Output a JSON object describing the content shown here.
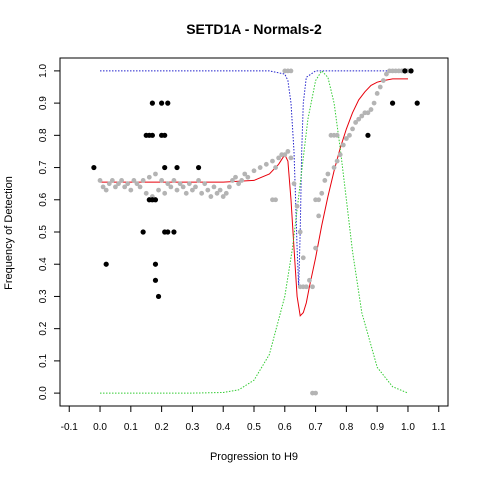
{
  "chart_data": {
    "type": "scatter",
    "title": "SETD1A - Normals-2",
    "xlabel": "Progression to H9",
    "ylabel": "Frequency of Detection",
    "xlim": [
      -0.13,
      1.13
    ],
    "ylim": [
      -0.04,
      1.04
    ],
    "xticks": [
      -0.1,
      0,
      0.1,
      0.2,
      0.3,
      0.4,
      0.5,
      0.6,
      0.7,
      0.8,
      0.9,
      1.0,
      1.1
    ],
    "xtick_labels": [
      "-0.1",
      "0.0",
      "0.1",
      "0.2",
      "0.3",
      "0.4",
      "0.5",
      "0.6",
      "0.7",
      "0.8",
      "0.9",
      "1.0",
      "1.1"
    ],
    "yticks": [
      0,
      0.1,
      0.2,
      0.3,
      0.4,
      0.5,
      0.6,
      0.7,
      0.8,
      0.9,
      1.0
    ],
    "ytick_labels": [
      "0.0",
      "0.1",
      "0.2",
      "0.3",
      "0.4",
      "0.5",
      "0.6",
      "0.7",
      "0.8",
      "0.9",
      "1.0"
    ],
    "grid": false,
    "colors": {
      "black_points": "#000000",
      "grey_points": "#b4b4b4",
      "red_curve": "#e8000b",
      "blue_curve": "#2222cc",
      "green_curve": "#33cc33"
    },
    "series": [
      {
        "kind": "points",
        "color": "black",
        "x": [
          -0.02,
          0.02,
          0.14,
          0.15,
          0.16,
          0.16,
          0.17,
          0.17,
          0.17,
          0.18,
          0.18,
          0.18,
          0.19,
          0.2,
          0.2,
          0.21,
          0.21,
          0.21,
          0.22,
          0.22,
          0.24,
          0.25,
          0.32,
          0.87,
          0.95,
          0.99,
          1.01,
          1.03
        ],
        "y": [
          0.7,
          0.4,
          0.5,
          0.8,
          0.6,
          0.8,
          0.6,
          0.8,
          0.9,
          0.6,
          0.4,
          0.35,
          0.3,
          0.9,
          0.8,
          0.8,
          0.7,
          0.5,
          0.9,
          0.5,
          0.5,
          0.7,
          0.7,
          0.8,
          0.9,
          1.0,
          1.0,
          0.9
        ]
      },
      {
        "kind": "points",
        "color": "grey",
        "x": [
          0.0,
          0.01,
          0.02,
          0.03,
          0.04,
          0.05,
          0.06,
          0.07,
          0.08,
          0.09,
          0.1,
          0.11,
          0.12,
          0.13,
          0.14,
          0.15,
          0.16,
          0.17,
          0.18,
          0.19,
          0.2,
          0.21,
          0.22,
          0.23,
          0.24,
          0.25,
          0.26,
          0.27,
          0.28,
          0.29,
          0.3,
          0.31,
          0.32,
          0.33,
          0.34,
          0.35,
          0.36,
          0.37,
          0.38,
          0.39,
          0.4,
          0.41,
          0.42,
          0.43,
          0.44,
          0.45,
          0.46,
          0.47,
          0.48,
          0.5,
          0.52,
          0.54,
          0.56,
          0.57,
          0.58,
          0.59,
          0.6,
          0.61,
          0.62,
          0.63,
          0.64,
          0.65,
          0.66,
          0.68,
          0.69,
          0.7,
          0.71,
          0.72,
          0.73,
          0.74,
          0.76,
          0.77,
          0.78,
          0.79,
          0.8,
          0.81,
          0.82,
          0.83,
          0.84,
          0.85,
          0.86,
          0.87,
          0.88,
          0.89,
          0.9,
          0.91,
          0.92,
          0.93,
          0.94,
          0.95,
          0.96,
          0.97,
          0.98,
          0.99,
          1.0,
          0.56,
          0.57,
          0.6,
          0.61,
          0.62,
          0.65,
          0.66,
          0.67,
          0.7,
          0.71,
          0.75,
          0.76,
          0.77,
          0.69,
          0.7
        ],
        "y": [
          0.66,
          0.64,
          0.63,
          0.65,
          0.66,
          0.64,
          0.65,
          0.66,
          0.64,
          0.65,
          0.63,
          0.66,
          0.65,
          0.64,
          0.66,
          0.62,
          0.67,
          0.61,
          0.68,
          0.63,
          0.66,
          0.62,
          0.65,
          0.64,
          0.66,
          0.63,
          0.65,
          0.64,
          0.62,
          0.65,
          0.63,
          0.64,
          0.66,
          0.62,
          0.65,
          0.63,
          0.61,
          0.64,
          0.62,
          0.63,
          0.61,
          0.62,
          0.64,
          0.66,
          0.67,
          0.65,
          0.66,
          0.68,
          0.67,
          0.69,
          0.7,
          0.71,
          0.72,
          0.7,
          0.73,
          0.74,
          0.74,
          0.75,
          0.73,
          0.65,
          0.58,
          0.5,
          0.42,
          0.35,
          0.33,
          0.45,
          0.55,
          0.62,
          0.66,
          0.68,
          0.7,
          0.72,
          0.74,
          0.77,
          0.79,
          0.8,
          0.82,
          0.84,
          0.85,
          0.86,
          0.87,
          0.87,
          0.88,
          0.9,
          0.93,
          0.95,
          0.97,
          0.99,
          1.0,
          1.0,
          1.0,
          1.0,
          1.0,
          1.0,
          1.0,
          0.6,
          0.6,
          1.0,
          1.0,
          1.0,
          0.33,
          0.33,
          0.33,
          0.6,
          0.6,
          0.8,
          0.8,
          0.8,
          0.0,
          0.0
        ]
      },
      {
        "kind": "line",
        "color": "red",
        "x": [
          0.0,
          0.1,
          0.2,
          0.3,
          0.4,
          0.5,
          0.55,
          0.58,
          0.6,
          0.61,
          0.62,
          0.63,
          0.64,
          0.65,
          0.66,
          0.67,
          0.68,
          0.7,
          0.72,
          0.74,
          0.76,
          0.78,
          0.8,
          0.82,
          0.84,
          0.86,
          0.88,
          0.9,
          0.92,
          0.95,
          1.0
        ],
        "y": [
          0.655,
          0.655,
          0.655,
          0.655,
          0.655,
          0.66,
          0.68,
          0.71,
          0.74,
          0.72,
          0.6,
          0.45,
          0.3,
          0.24,
          0.25,
          0.28,
          0.33,
          0.42,
          0.52,
          0.61,
          0.69,
          0.76,
          0.82,
          0.87,
          0.91,
          0.935,
          0.955,
          0.965,
          0.97,
          0.975,
          0.975
        ]
      },
      {
        "kind": "line",
        "color": "blue",
        "x": [
          0.0,
          0.3,
          0.55,
          0.6,
          0.61,
          0.62,
          0.63,
          0.635,
          0.64,
          0.645,
          0.65,
          0.655,
          0.66,
          0.67,
          0.7,
          0.8,
          1.0
        ],
        "y": [
          1.0,
          1.0,
          1.0,
          0.99,
          0.97,
          0.9,
          0.75,
          0.6,
          0.45,
          0.33,
          0.5,
          0.75,
          0.9,
          0.98,
          1.0,
          1.0,
          1.0
        ]
      },
      {
        "kind": "line",
        "color": "green",
        "x": [
          0.0,
          0.3,
          0.4,
          0.45,
          0.5,
          0.55,
          0.6,
          0.625,
          0.65,
          0.675,
          0.7,
          0.72,
          0.74,
          0.76,
          0.78,
          0.8,
          0.82,
          0.85,
          0.9,
          0.95,
          1.0
        ],
        "y": [
          0.0,
          0.0,
          0.002,
          0.01,
          0.04,
          0.12,
          0.3,
          0.45,
          0.65,
          0.85,
          0.97,
          1.0,
          0.98,
          0.9,
          0.76,
          0.6,
          0.44,
          0.25,
          0.08,
          0.02,
          0.0
        ]
      }
    ]
  }
}
